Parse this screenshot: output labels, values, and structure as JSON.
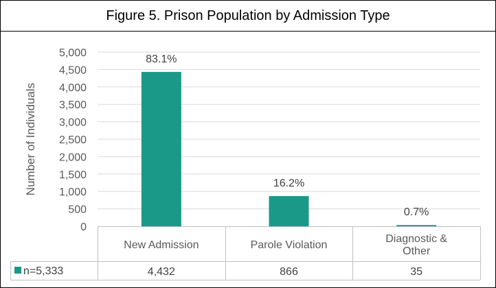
{
  "title": "Figure 5. Prison Population by Admission Type",
  "chart_data": {
    "type": "bar",
    "title": "Figure 5. Prison Population by Admission Type",
    "ylabel": "Number of Individuals",
    "xlabel": "",
    "ylim": [
      0,
      5000
    ],
    "yticks": [
      0,
      500,
      1000,
      1500,
      2000,
      2500,
      3000,
      3500,
      4000,
      4500,
      5000
    ],
    "ytick_labels": [
      "0",
      "500",
      "1,000",
      "1,500",
      "2,000",
      "2,500",
      "3,000",
      "3,500",
      "4,000",
      "4,500",
      "5,000"
    ],
    "grid": true,
    "categories": [
      "New Admission",
      "Parole Violation",
      "Diagnostic & Other"
    ],
    "category_lines": [
      [
        "New Admission"
      ],
      [
        "Parole Violation"
      ],
      [
        "Diagnostic &",
        "Other"
      ]
    ],
    "series": [
      {
        "name": "n=5,333",
        "values": [
          4432,
          866,
          35
        ],
        "value_labels": [
          "4,432",
          "866",
          "35"
        ],
        "percent_labels": [
          "83.1%",
          "16.2%",
          "0.7%"
        ],
        "color": "#1a9988"
      }
    ],
    "data_table": true
  }
}
